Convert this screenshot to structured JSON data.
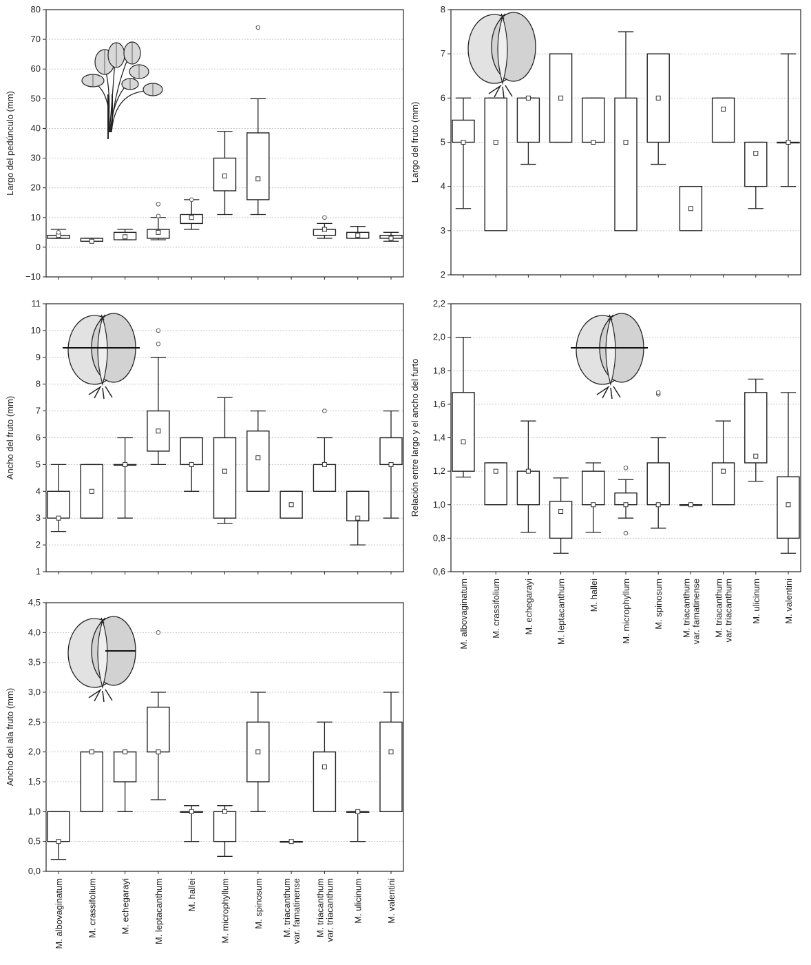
{
  "chart_data": [
    {
      "type": "box",
      "id": "pedunculo",
      "ylabel": "Largo del pedúnculo (mm)",
      "ylim": [
        -10,
        80
      ],
      "yticks": [
        -10,
        0,
        10,
        20,
        30,
        40,
        50,
        60,
        70,
        80
      ],
      "ytick_labels": [
        "−10",
        "0",
        "10",
        "20",
        "30",
        "40",
        "50",
        "60",
        "70",
        "80"
      ],
      "grid": true,
      "icon": "peduncle-illustration-icon",
      "boxes": [
        {
          "cat": 0,
          "median": 4,
          "q1": 3,
          "q3": 4,
          "min": 3,
          "max": 6,
          "outliers": [
            5
          ]
        },
        {
          "cat": 1,
          "median": 2,
          "q1": 2,
          "q3": 3,
          "min": 2,
          "max": 3,
          "outliers": []
        },
        {
          "cat": 2,
          "median": 3.5,
          "q1": 2.5,
          "q3": 5,
          "min": 2.5,
          "max": 6,
          "outliers": []
        },
        {
          "cat": 3,
          "median": 5,
          "q1": 3,
          "q3": 6,
          "min": 2.5,
          "max": 10,
          "outliers": [
            10.5,
            14.5
          ]
        },
        {
          "cat": 4,
          "median": 10,
          "q1": 8,
          "q3": 11,
          "min": 6,
          "max": 16,
          "outliers": [
            16
          ]
        },
        {
          "cat": 5,
          "median": 24,
          "q1": 19,
          "q3": 30,
          "min": 11,
          "max": 39,
          "outliers": []
        },
        {
          "cat": 6,
          "median": 23,
          "q1": 16,
          "q3": 38.5,
          "min": 11,
          "max": 50,
          "outliers": [
            74
          ]
        },
        {
          "cat": 8,
          "median": 6,
          "q1": 4,
          "q3": 6,
          "min": 3,
          "max": 8,
          "outliers": [
            10
          ]
        },
        {
          "cat": 9,
          "median": 4,
          "q1": 3,
          "q3": 5,
          "min": 3,
          "max": 7,
          "outliers": []
        },
        {
          "cat": 10,
          "median": 3,
          "q1": 3,
          "q3": 4,
          "min": 2,
          "max": 5,
          "outliers": []
        }
      ]
    },
    {
      "type": "box",
      "id": "largo-fruto",
      "ylabel": "Largo del fruto (mm)",
      "ylim": [
        2,
        8
      ],
      "yticks": [
        2,
        3,
        4,
        5,
        6,
        7,
        8
      ],
      "ytick_labels": [
        "2",
        "3",
        "4",
        "5",
        "6",
        "7",
        "8"
      ],
      "grid": true,
      "icon": "fruit-illustration-icon",
      "boxes": [
        {
          "cat": 0,
          "median": 5,
          "q1": 5,
          "q3": 5.5,
          "min": 3.5,
          "max": 6,
          "outliers": []
        },
        {
          "cat": 1,
          "median": 5,
          "q1": 3,
          "q3": 6,
          "min": 3,
          "max": 6,
          "outliers": []
        },
        {
          "cat": 2,
          "median": 6,
          "q1": 5,
          "q3": 6,
          "min": 4.5,
          "max": 6,
          "outliers": []
        },
        {
          "cat": 3,
          "median": 6,
          "q1": 5,
          "q3": 7,
          "min": 5,
          "max": 7,
          "outliers": []
        },
        {
          "cat": 4,
          "median": 5,
          "q1": 5,
          "q3": 6,
          "min": 5,
          "max": 6,
          "outliers": []
        },
        {
          "cat": 5,
          "median": 5,
          "q1": 3,
          "q3": 6,
          "min": 3,
          "max": 7.5,
          "outliers": []
        },
        {
          "cat": 6,
          "median": 6,
          "q1": 5,
          "q3": 7,
          "min": 4.5,
          "max": 7,
          "outliers": []
        },
        {
          "cat": 7,
          "median": 3.5,
          "q1": 3,
          "q3": 4,
          "min": 3,
          "max": 4,
          "outliers": []
        },
        {
          "cat": 8,
          "median": 5.75,
          "q1": 5,
          "q3": 6,
          "min": 5,
          "max": 6,
          "outliers": []
        },
        {
          "cat": 9,
          "median": 4.75,
          "q1": 4,
          "q3": 5,
          "min": 3.5,
          "max": 5,
          "outliers": []
        },
        {
          "cat": 10,
          "median": 5,
          "q1": 5,
          "q3": 5,
          "min": 4,
          "max": 7,
          "outliers": []
        }
      ]
    },
    {
      "type": "box",
      "id": "ancho-fruto",
      "ylabel": "Ancho del fruto (mm)",
      "ylim": [
        1,
        11
      ],
      "yticks": [
        1,
        2,
        3,
        4,
        5,
        6,
        7,
        8,
        9,
        10,
        11
      ],
      "ytick_labels": [
        "1",
        "2",
        "3",
        "4",
        "5",
        "6",
        "7",
        "8",
        "9",
        "10",
        "11"
      ],
      "grid": true,
      "icon": "fruit-width-illustration-icon",
      "boxes": [
        {
          "cat": 0,
          "median": 3,
          "q1": 3,
          "q3": 4,
          "min": 2.5,
          "max": 5,
          "outliers": []
        },
        {
          "cat": 1,
          "median": 4,
          "q1": 3,
          "q3": 5,
          "min": 3,
          "max": 5,
          "outliers": []
        },
        {
          "cat": 2,
          "median": 5,
          "q1": 5,
          "q3": 5,
          "min": 3,
          "max": 6,
          "outliers": []
        },
        {
          "cat": 3,
          "median": 6.25,
          "q1": 5.5,
          "q3": 7,
          "min": 5,
          "max": 9,
          "outliers": [
            9.5,
            10
          ]
        },
        {
          "cat": 4,
          "median": 5,
          "q1": 5,
          "q3": 6,
          "min": 4,
          "max": 6,
          "outliers": []
        },
        {
          "cat": 5,
          "median": 4.75,
          "q1": 3,
          "q3": 6,
          "min": 2.8,
          "max": 7.5,
          "outliers": []
        },
        {
          "cat": 6,
          "median": 5.25,
          "q1": 4,
          "q3": 6.25,
          "min": 4,
          "max": 7,
          "outliers": []
        },
        {
          "cat": 7,
          "median": 3.5,
          "q1": 3,
          "q3": 4,
          "min": 3,
          "max": 4,
          "outliers": []
        },
        {
          "cat": 8,
          "median": 5,
          "q1": 4,
          "q3": 5,
          "min": 4,
          "max": 6,
          "outliers": [
            7
          ]
        },
        {
          "cat": 9,
          "median": 3,
          "q1": 2.9,
          "q3": 4,
          "min": 2,
          "max": 4,
          "outliers": []
        },
        {
          "cat": 10,
          "median": 5,
          "q1": 5,
          "q3": 6,
          "min": 3,
          "max": 7,
          "outliers": []
        }
      ]
    },
    {
      "type": "box",
      "id": "relacion",
      "ylabel": "Relación entre largo y el ancho del furto",
      "ylim": [
        0.6,
        2.2
      ],
      "yticks": [
        0.6,
        0.8,
        1.0,
        1.2,
        1.4,
        1.6,
        1.8,
        2.0,
        2.2
      ],
      "ytick_labels": [
        "0,6",
        "0,8",
        "1,0",
        "1,2",
        "1,4",
        "1,6",
        "1,8",
        "2,0",
        "2,2"
      ],
      "grid": true,
      "icon": "fruit-ratio-illustration-icon",
      "boxes": [
        {
          "cat": 0,
          "median": 1.375,
          "q1": 1.2,
          "q3": 1.67,
          "min": 1.165,
          "max": 2.0,
          "outliers": []
        },
        {
          "cat": 1,
          "median": 1.2,
          "q1": 1.0,
          "q3": 1.25,
          "min": 1.0,
          "max": 1.25,
          "outliers": []
        },
        {
          "cat": 2,
          "median": 1.2,
          "q1": 1.0,
          "q3": 1.2,
          "min": 0.835,
          "max": 1.5,
          "outliers": []
        },
        {
          "cat": 3,
          "median": 0.96,
          "q1": 0.8,
          "q3": 1.02,
          "min": 0.71,
          "max": 1.16,
          "outliers": []
        },
        {
          "cat": 4,
          "median": 1.0,
          "q1": 1.0,
          "q3": 1.2,
          "min": 0.835,
          "max": 1.25,
          "outliers": []
        },
        {
          "cat": 5,
          "median": 1.0,
          "q1": 1.0,
          "q3": 1.07,
          "min": 0.92,
          "max": 1.15,
          "outliers": [
            1.22,
            0.83
          ]
        },
        {
          "cat": 6,
          "median": 1.0,
          "q1": 1.0,
          "q3": 1.25,
          "min": 0.86,
          "max": 1.4,
          "outliers": [
            1.66,
            1.67
          ]
        },
        {
          "cat": 7,
          "median": 1.0,
          "q1": 1.0,
          "q3": 1.0,
          "min": 1.0,
          "max": 1.0,
          "outliers": []
        },
        {
          "cat": 8,
          "median": 1.2,
          "q1": 1.0,
          "q3": 1.25,
          "min": 1.0,
          "max": 1.5,
          "outliers": []
        },
        {
          "cat": 9,
          "median": 1.29,
          "q1": 1.25,
          "q3": 1.67,
          "min": 1.14,
          "max": 1.75,
          "outliers": []
        },
        {
          "cat": 10,
          "median": 1.0,
          "q1": 0.8,
          "q3": 1.167,
          "min": 0.71,
          "max": 1.67,
          "outliers": []
        }
      ]
    },
    {
      "type": "box",
      "id": "ancho-ala",
      "ylabel": "Ancho del ala fruto (mm)",
      "ylim": [
        0,
        4.5
      ],
      "yticks": [
        0,
        0.5,
        1.0,
        1.5,
        2.0,
        2.5,
        3.0,
        3.5,
        4.0,
        4.5
      ],
      "ytick_labels": [
        "0,0",
        "0,5",
        "1,0",
        "1,5",
        "2,0",
        "2,5",
        "3,0",
        "3,5",
        "4,0",
        "4,5"
      ],
      "grid": true,
      "icon": "wing-illustration-icon",
      "boxes": [
        {
          "cat": 0,
          "median": 0.5,
          "q1": 0.5,
          "q3": 1.0,
          "min": 0.2,
          "max": 1.0,
          "outliers": []
        },
        {
          "cat": 1,
          "median": 2.0,
          "q1": 1.0,
          "q3": 2.0,
          "min": 1.0,
          "max": 2.0,
          "outliers": []
        },
        {
          "cat": 2,
          "median": 2.0,
          "q1": 1.5,
          "q3": 2.0,
          "min": 1.0,
          "max": 2.0,
          "outliers": []
        },
        {
          "cat": 3,
          "median": 2.0,
          "q1": 2.0,
          "q3": 2.75,
          "min": 1.2,
          "max": 3.0,
          "outliers": [
            4.0
          ]
        },
        {
          "cat": 4,
          "median": 1.0,
          "q1": 1.0,
          "q3": 1.0,
          "min": 0.5,
          "max": 1.1,
          "outliers": []
        },
        {
          "cat": 5,
          "median": 1.0,
          "q1": 0.5,
          "q3": 1.0,
          "min": 0.25,
          "max": 1.1,
          "outliers": []
        },
        {
          "cat": 6,
          "median": 2.0,
          "q1": 1.5,
          "q3": 2.5,
          "min": 1.0,
          "max": 3.0,
          "outliers": []
        },
        {
          "cat": 7,
          "median": 0.5,
          "q1": 0.5,
          "q3": 0.5,
          "min": 0.5,
          "max": 0.5,
          "outliers": []
        },
        {
          "cat": 8,
          "median": 1.75,
          "q1": 1.0,
          "q3": 2.0,
          "min": 1.0,
          "max": 2.5,
          "outliers": []
        },
        {
          "cat": 9,
          "median": 1.0,
          "q1": 1.0,
          "q3": 1.0,
          "min": 0.5,
          "max": 1.0,
          "outliers": []
        },
        {
          "cat": 10,
          "median": 2.0,
          "q1": 1.0,
          "q3": 2.5,
          "min": 1.0,
          "max": 3.0,
          "outliers": []
        }
      ]
    }
  ],
  "categories": [
    [
      "M. albovaginatum"
    ],
    [
      "M. crassifolium"
    ],
    [
      "M. echegarayi"
    ],
    [
      "M. leptacanthum"
    ],
    [
      "M. hallei"
    ],
    [
      "M. microphyllum"
    ],
    [
      "M. spinosum"
    ],
    [
      "M. triacanthum",
      "var. famatinense"
    ],
    [
      "M. triacanthum",
      "var. triacanthum"
    ],
    [
      "M. ulicinum"
    ],
    [
      "M. valentini"
    ]
  ]
}
